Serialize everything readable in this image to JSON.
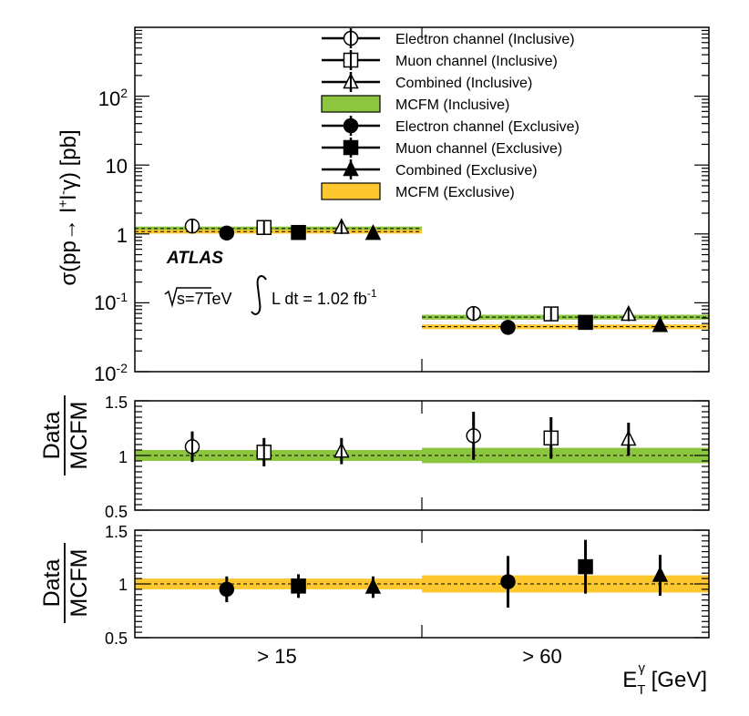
{
  "chart_data": {
    "type": "scatter",
    "categories": [
      "> 15",
      "> 60"
    ],
    "xlabel": {
      "main": "E",
      "sub": "T",
      "sup": "γ",
      "unit": " [GeV]"
    },
    "top": {
      "ylabel": {
        "a": "σ(pp→ l",
        "sup": "+",
        "b": "l",
        "sup2": "-",
        "c": "γ) [pb]"
      },
      "yscale": "log",
      "ylim": [
        0.01,
        1000
      ],
      "yticks": [
        {
          "v": 0.01,
          "base": "10",
          "exp": "-2"
        },
        {
          "v": 0.1,
          "base": "10",
          "exp": "-1"
        },
        {
          "v": 1,
          "base": "1",
          "exp": ""
        },
        {
          "v": 10,
          "base": "10",
          "exp": ""
        },
        {
          "v": 100,
          "base": "10",
          "exp": "2"
        }
      ],
      "bands": [
        {
          "name": "MCFM (Inclusive)",
          "color": "#8cc63f",
          "values": [
            {
              "c": 1.2,
              "lo": 1.12,
              "hi": 1.28
            },
            {
              "c": 0.062,
              "lo": 0.057,
              "hi": 0.067
            }
          ]
        },
        {
          "name": "MCFM (Exclusive)",
          "color": "#fdc82f",
          "values": [
            {
              "c": 1.08,
              "lo": 1.01,
              "hi": 1.15
            },
            {
              "c": 0.045,
              "lo": 0.0415,
              "hi": 0.0485
            }
          ]
        }
      ],
      "series": [
        {
          "name": "Electron channel (Inclusive)",
          "marker": "circle-open",
          "pos": [
            0.2,
            0.18
          ],
          "values": [
            1.3,
            0.07
          ],
          "err": [
            0.11,
            0.012
          ]
        },
        {
          "name": "Muon channel (Inclusive)",
          "marker": "square-open",
          "pos": [
            0.45,
            0.45
          ],
          "values": [
            1.24,
            0.069
          ],
          "err": [
            0.11,
            0.012
          ]
        },
        {
          "name": "Combined (Inclusive)",
          "marker": "triangle-open",
          "pos": [
            0.72,
            0.72
          ],
          "values": [
            1.25,
            0.068
          ],
          "err": [
            0.1,
            0.009
          ]
        },
        {
          "name": "MCFM (Inclusive)",
          "marker": "band-green"
        },
        {
          "name": "Electron channel (Exclusive)",
          "marker": "circle-filled",
          "pos": [
            0.32,
            0.3
          ],
          "values": [
            1.03,
            0.044
          ],
          "err": [
            0.07,
            0.008
          ]
        },
        {
          "name": "Muon channel (Exclusive)",
          "marker": "square-filled",
          "pos": [
            0.57,
            0.57
          ],
          "values": [
            1.05,
            0.052
          ],
          "err": [
            0.07,
            0.008
          ]
        },
        {
          "name": "Combined (Exclusive)",
          "marker": "triangle-filled",
          "pos": [
            0.83,
            0.83
          ],
          "values": [
            1.02,
            0.047
          ],
          "err": [
            0.06,
            0.006
          ]
        },
        {
          "name": "MCFM (Exclusive)",
          "marker": "band-yellow"
        }
      ]
    },
    "annotations": {
      "atlas": "ATLAS",
      "energy": "s=7TeV",
      "lumi_text": "L dt = 1.02 fb",
      "lumi_exp": "-1"
    },
    "ratio_inclusive": {
      "ylabel_num": "Data",
      "ylabel_den": "MCFM",
      "ylim": [
        0.5,
        1.5
      ],
      "yticks": [
        "0.5",
        "1",
        "1.5"
      ],
      "band_color": "#8cc63f",
      "band": [
        {
          "lo": 0.95,
          "hi": 1.05
        },
        {
          "lo": 0.93,
          "hi": 1.07
        }
      ],
      "points": [
        {
          "marker": "circle-open",
          "pos": [
            0.2,
            0.18
          ],
          "values": [
            1.08,
            1.18
          ],
          "err": [
            0.14,
            0.22
          ]
        },
        {
          "marker": "square-open",
          "pos": [
            0.45,
            0.45
          ],
          "values": [
            1.03,
            1.16
          ],
          "err": [
            0.13,
            0.19
          ]
        },
        {
          "marker": "triangle-open",
          "pos": [
            0.72,
            0.72
          ],
          "values": [
            1.04,
            1.15
          ],
          "err": [
            0.12,
            0.15
          ]
        }
      ]
    },
    "ratio_exclusive": {
      "ylabel_num": "Data",
      "ylabel_den": "MCFM",
      "ylim": [
        0.5,
        1.5
      ],
      "yticks": [
        "0.5",
        "1",
        "1.5"
      ],
      "band_color": "#fdc82f",
      "band": [
        {
          "lo": 0.95,
          "hi": 1.05
        },
        {
          "lo": 0.92,
          "hi": 1.08
        }
      ],
      "points": [
        {
          "marker": "circle-filled",
          "pos": [
            0.32,
            0.3
          ],
          "values": [
            0.95,
            1.02
          ],
          "err": [
            0.12,
            0.24
          ]
        },
        {
          "marker": "square-filled",
          "pos": [
            0.57,
            0.57
          ],
          "values": [
            0.98,
            1.16
          ],
          "err": [
            0.11,
            0.25
          ]
        },
        {
          "marker": "triangle-filled",
          "pos": [
            0.83,
            0.83
          ],
          "values": [
            0.97,
            1.08
          ],
          "err": [
            0.1,
            0.19
          ]
        }
      ]
    }
  }
}
